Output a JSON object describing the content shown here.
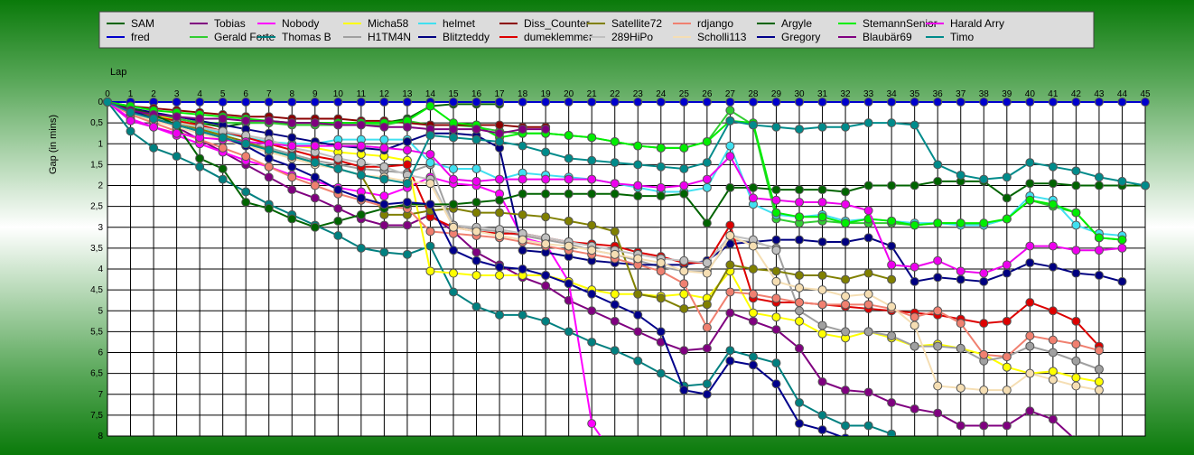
{
  "chart_data": {
    "type": "line",
    "xlabel": "Lap",
    "ylabel": "Gap (in mins)",
    "xlim": [
      0,
      45
    ],
    "ylim": [
      0,
      8
    ],
    "y_inverted": true,
    "grid": true,
    "legend_position": "top",
    "x_ticks": [
      "0",
      "1",
      "2",
      "3",
      "4",
      "5",
      "6",
      "7",
      "8",
      "9",
      "10",
      "11",
      "12",
      "13",
      "14",
      "15",
      "16",
      "17",
      "18",
      "19",
      "20",
      "21",
      "22",
      "23",
      "24",
      "25",
      "26",
      "27",
      "28",
      "29",
      "30",
      "31",
      "32",
      "33",
      "34",
      "35",
      "36",
      "37",
      "38",
      "39",
      "40",
      "41",
      "42",
      "43",
      "44",
      "45"
    ],
    "y_ticks": [
      "0",
      "0,5",
      "1",
      "1,5",
      "2",
      "2,5",
      "3",
      "3,5",
      "4",
      "4,5",
      "5",
      "5,5",
      "6",
      "6,5",
      "7",
      "7,5",
      "8"
    ],
    "series": [
      {
        "name": "SAM",
        "color": "#006400",
        "values": [
          0,
          0.2,
          0.3,
          0.4,
          0.5,
          0.6,
          0.5,
          0.5,
          0.5,
          0.5,
          0.5,
          0.5,
          0.5,
          0.4,
          0.1,
          0.05,
          0.05,
          0.05
        ]
      },
      {
        "name": "fred",
        "color": "#0000cc",
        "values": [
          0,
          0,
          0,
          0,
          0,
          0,
          0,
          0,
          0,
          0,
          0,
          0,
          0,
          0,
          0,
          0,
          0,
          0,
          0,
          0,
          0,
          0,
          0,
          0,
          0,
          0,
          0,
          0,
          0,
          0,
          0,
          0,
          0,
          0,
          0,
          0,
          0,
          0,
          0,
          0,
          0,
          0,
          0,
          0,
          0,
          0
        ]
      },
      {
        "name": "Tobias",
        "color": "#800080",
        "values": [
          0,
          0.2,
          0.4,
          0.6,
          0.9,
          1.2,
          1.5,
          1.8,
          2.1,
          2.3,
          2.55,
          2.8,
          2.95,
          2.95,
          2.7,
          3.1,
          3.6,
          3.9,
          4.2,
          4.4,
          4.75,
          5.0,
          5.25,
          5.5,
          5.75,
          5.95,
          5.9,
          5.05,
          5.25,
          5.45,
          5.9,
          6.7,
          6.9,
          6.95,
          7.2,
          7.35,
          7.45,
          7.75,
          7.75,
          7.75,
          7.4,
          7.6,
          8.1
        ]
      },
      {
        "name": "Gerald Forte",
        "color": "#32cd32",
        "values": [
          0,
          0.2,
          0.3,
          0.4,
          0.5,
          0.5,
          0.5,
          0.5,
          0.55,
          0.55,
          0.55,
          0.55,
          0.55,
          0.45,
          0.55,
          0.55,
          0.6,
          0.7,
          0.75,
          0.75,
          0.8,
          0.85,
          0.95,
          1.05,
          1.1,
          1.1,
          0.95,
          0.2,
          0.55,
          2.8,
          2.9,
          2.85,
          2.9,
          2.9,
          2.9,
          2.95,
          2.9,
          2.9,
          2.95,
          2.8,
          2.35,
          2.5,
          2.65,
          3.25,
          3.3
        ]
      },
      {
        "name": "Nobody",
        "color": "#ff00ff",
        "values": [
          0,
          0.4,
          0.6,
          0.8,
          1.0,
          1.2,
          1.4,
          1.55,
          1.75,
          1.9,
          2.05,
          2.15,
          2.25,
          2.05,
          1.8,
          1.95,
          2.0,
          2.2,
          3.25,
          3.4,
          4.3,
          7.7,
          8.5
        ]
      },
      {
        "name": "Thomas B",
        "color": "#008080",
        "values": [
          0,
          0.7,
          1.1,
          1.3,
          1.55,
          1.85,
          2.15,
          2.45,
          2.7,
          2.95,
          3.2,
          3.5,
          3.6,
          3.65,
          3.45,
          4.55,
          4.9,
          5.1,
          5.1,
          5.25,
          5.5,
          5.75,
          5.95,
          6.2,
          6.5,
          6.8,
          6.75,
          5.95,
          6.1,
          6.25,
          7.2,
          7.5,
          7.75,
          7.75,
          7.95
        ]
      },
      {
        "name": "Micha58",
        "color": "#ffff00",
        "values": [
          0,
          0.15,
          0.3,
          0.45,
          0.6,
          0.75,
          0.85,
          0.95,
          1.05,
          1.1,
          1.2,
          1.25,
          1.3,
          1.4,
          4.05,
          4.1,
          4.15,
          4.15,
          4.15,
          4.15,
          4.3,
          4.5,
          4.6,
          4.6,
          4.65,
          4.6,
          4.7,
          4.05,
          5.05,
          5.15,
          5.25,
          5.55,
          5.65,
          5.5,
          5.65,
          5.85,
          5.8,
          5.9,
          6.05,
          6.35,
          6.5,
          6.45,
          6.6,
          6.7
        ]
      },
      {
        "name": "H1TM4N",
        "color": "#a0a0a0",
        "values": [
          0,
          0.2,
          0.35,
          0.5,
          0.65,
          0.8,
          0.95,
          1.1,
          1.25,
          1.4,
          1.5,
          1.6,
          1.65,
          1.7,
          1.5,
          2.95,
          3.05,
          3.1,
          3.2,
          3.3,
          3.4,
          3.55,
          3.65,
          3.8,
          3.95,
          4.05,
          4.05,
          3.3,
          3.35,
          3.5,
          5.0,
          5.35,
          5.5,
          5.5,
          5.6,
          5.85,
          5.85,
          5.9,
          6.2,
          6.1,
          5.85,
          6.0,
          6.2,
          6.4
        ]
      },
      {
        "name": "helmet",
        "color": "#40e0f0",
        "values": [
          0,
          0.2,
          0.35,
          0.5,
          0.6,
          0.75,
          0.85,
          0.95,
          1.0,
          1.0,
          0.9,
          0.9,
          0.9,
          0.9,
          1.45,
          1.6,
          1.6,
          1.85,
          1.7,
          1.75,
          1.8,
          1.85,
          1.95,
          2.05,
          2.15,
          2.15,
          2.05,
          1.05,
          2.45,
          2.7,
          2.75,
          2.7,
          2.85,
          2.8,
          2.85,
          2.9,
          2.9,
          2.95,
          2.95,
          2.8,
          2.25,
          2.35,
          2.95,
          3.15,
          3.2
        ]
      },
      {
        "name": "Blitzteddy",
        "color": "#000080",
        "values": [
          0,
          0.15,
          0.25,
          0.35,
          0.45,
          0.55,
          0.65,
          0.75,
          0.85,
          0.95,
          1.05,
          1.1,
          1.15,
          0.95,
          0.75,
          0.75,
          0.8,
          1.1,
          3.55,
          3.6,
          3.7,
          3.8,
          3.85,
          3.9,
          3.9,
          3.9,
          3.8,
          3.4,
          3.35,
          3.3,
          3.3,
          3.35,
          3.35,
          3.25,
          3.45,
          4.3,
          4.2,
          4.25,
          4.3,
          4.1,
          3.85,
          3.95,
          4.1,
          4.15,
          4.3
        ]
      },
      {
        "name": "Diss_Counter",
        "color": "#8b0000",
        "values": [
          0,
          0.1,
          0.15,
          0.2,
          0.25,
          0.3,
          0.35,
          0.35,
          0.4,
          0.4,
          0.4,
          0.45,
          0.45,
          0.5,
          0.55,
          0.55,
          0.55,
          0.55,
          0.6,
          0.6
        ]
      },
      {
        "name": "dumeklemmer",
        "color": "#dd0000",
        "values": [
          0,
          0.25,
          0.35,
          0.45,
          0.55,
          0.7,
          0.85,
          1.0,
          1.15,
          1.3,
          1.4,
          1.55,
          1.55,
          1.5,
          2.75,
          3.0,
          3.1,
          3.15,
          3.15,
          3.25,
          3.35,
          3.4,
          3.45,
          3.6,
          3.7,
          3.85,
          3.85,
          2.95,
          4.7,
          4.8,
          4.8,
          4.85,
          4.9,
          4.95,
          5.0,
          5.05,
          5.1,
          5.2,
          5.3,
          5.25,
          4.8,
          5.0,
          5.25,
          5.85
        ]
      },
      {
        "name": "Satellite72",
        "color": "#808000",
        "values": [
          0,
          0.2,
          0.35,
          0.5,
          0.65,
          0.8,
          0.95,
          1.15,
          1.3,
          1.45,
          1.6,
          1.75,
          2.7,
          2.7,
          2.6,
          2.55,
          2.65,
          2.65,
          2.7,
          2.75,
          2.85,
          2.95,
          3.1,
          4.6,
          4.7,
          4.95,
          4.85,
          3.9,
          4.0,
          4.05,
          4.15,
          4.15,
          4.25,
          4.1,
          4.25
        ]
      },
      {
        "name": "289HiPo",
        "color": "#c0c0c0",
        "values": [
          0,
          0.3,
          0.4,
          0.5,
          0.6,
          0.7,
          0.8,
          0.9,
          1.1,
          1.2,
          1.35,
          1.45,
          1.55,
          1.75,
          1.85,
          2.95,
          3.0,
          3.05,
          3.15,
          3.25,
          3.35,
          3.45,
          3.55,
          3.65,
          3.75,
          3.8,
          3.85,
          3.2,
          3.3,
          3.55
        ]
      },
      {
        "name": "rdjango",
        "color": "#f08070",
        "values": [
          0,
          0.3,
          0.5,
          0.7,
          0.9,
          1.1,
          1.3,
          1.55,
          1.8,
          2.0,
          2.2,
          2.35,
          2.5,
          2.55,
          3.1,
          3.15,
          3.2,
          3.25,
          3.35,
          3.45,
          3.55,
          3.65,
          3.75,
          3.9,
          4.05,
          4.35,
          5.4,
          4.55,
          4.6,
          4.7,
          4.8,
          4.85,
          4.85,
          4.85,
          4.95,
          5.15,
          5.0,
          5.3,
          6.05,
          6.1,
          5.6,
          5.7,
          5.8,
          5.95
        ]
      },
      {
        "name": "Scholli113",
        "color": "#f5deb3",
        "values": [
          0,
          0.25,
          0.45,
          0.6,
          0.75,
          0.9,
          1.05,
          1.2,
          1.35,
          1.5,
          1.6,
          1.75,
          1.8,
          1.9,
          1.95,
          3.0,
          3.1,
          3.2,
          3.3,
          3.4,
          3.45,
          3.55,
          3.65,
          3.75,
          3.85,
          4.05,
          4.1,
          3.2,
          3.45,
          4.3,
          4.45,
          4.5,
          4.65,
          4.6,
          4.9,
          5.35,
          6.8,
          6.85,
          6.9,
          6.9,
          6.5,
          6.65,
          6.8,
          6.9
        ]
      },
      {
        "name": "Argyle",
        "color": "#006400",
        "values": [
          0,
          0.15,
          0.3,
          0.55,
          1.35,
          1.6,
          2.4,
          2.55,
          2.8,
          3.0,
          2.85,
          2.7,
          2.55,
          2.45,
          2.45,
          2.45,
          2.4,
          2.35,
          2.2,
          2.2,
          2.2,
          2.2,
          2.2,
          2.25,
          2.25,
          2.2,
          2.9,
          2.05,
          2.05,
          2.1,
          2.1,
          2.1,
          2.15,
          2.0,
          2.0,
          2.0,
          1.9,
          1.9,
          1.9,
          2.3,
          1.95,
          1.95,
          2.0,
          2.0,
          2.0,
          2.0
        ]
      },
      {
        "name": "Gregory",
        "color": "#00008b",
        "values": [
          0,
          0.2,
          0.4,
          0.55,
          0.7,
          0.85,
          1.05,
          1.35,
          1.55,
          1.8,
          2.1,
          2.3,
          2.45,
          2.4,
          2.45,
          3.55,
          3.8,
          3.95,
          4.0,
          4.15,
          4.35,
          4.6,
          4.85,
          5.1,
          5.5,
          6.9,
          7.0,
          6.2,
          6.3,
          6.75,
          7.7,
          7.85,
          8.05
        ]
      },
      {
        "name": "StemannSenior",
        "color": "#00ee00",
        "values": [
          0,
          0.1,
          0.2,
          0.25,
          0.3,
          0.35,
          0.4,
          0.45,
          0.5,
          0.5,
          0.5,
          0.5,
          0.5,
          0.45,
          0.1,
          0.5,
          0.55,
          0.85,
          0.75,
          0.75,
          0.8,
          0.85,
          0.95,
          1.05,
          1.1,
          1.1,
          0.95,
          0.45,
          0.5,
          2.65,
          2.75,
          2.75,
          2.9,
          2.8,
          2.85,
          2.95,
          2.9,
          2.9,
          2.9,
          2.8,
          2.35,
          2.45,
          2.65,
          3.25,
          3.3
        ]
      },
      {
        "name": "Blaubär69",
        "color": "#800080",
        "values": [
          0,
          0.2,
          0.3,
          0.35,
          0.4,
          0.4,
          0.45,
          0.45,
          0.5,
          0.5,
          0.55,
          0.55,
          0.6,
          0.6,
          0.65,
          0.65,
          0.65,
          0.75,
          0.65,
          0.65
        ]
      },
      {
        "name": "Harald Arry",
        "color": "#ee00ee",
        "values": [
          0,
          0.45,
          0.6,
          0.75,
          0.85,
          0.9,
          0.95,
          1.0,
          1.05,
          1.05,
          1.05,
          1.05,
          1.1,
          1.15,
          1.25,
          1.85,
          1.9,
          1.85,
          1.85,
          1.85,
          1.85,
          1.85,
          1.95,
          2.0,
          2.05,
          2.0,
          1.85,
          1.3,
          2.3,
          2.35,
          2.4,
          2.4,
          2.45,
          2.6,
          3.9,
          3.95,
          3.8,
          4.05,
          4.1,
          3.9,
          3.45,
          3.45,
          3.55,
          3.55,
          3.5
        ]
      },
      {
        "name": "Timo",
        "color": "#008b8b",
        "values": [
          0,
          0.25,
          0.4,
          0.55,
          0.7,
          0.85,
          1.0,
          1.15,
          1.3,
          1.45,
          1.6,
          1.75,
          1.85,
          1.95,
          0.8,
          0.85,
          0.9,
          0.95,
          1.05,
          1.2,
          1.35,
          1.4,
          1.45,
          1.5,
          1.55,
          1.6,
          1.45,
          0.45,
          0.55,
          0.6,
          0.65,
          0.6,
          0.6,
          0.5,
          0.5,
          0.55,
          1.5,
          1.75,
          1.85,
          1.8,
          1.45,
          1.55,
          1.65,
          1.8,
          1.9,
          2.0
        ]
      }
    ]
  }
}
